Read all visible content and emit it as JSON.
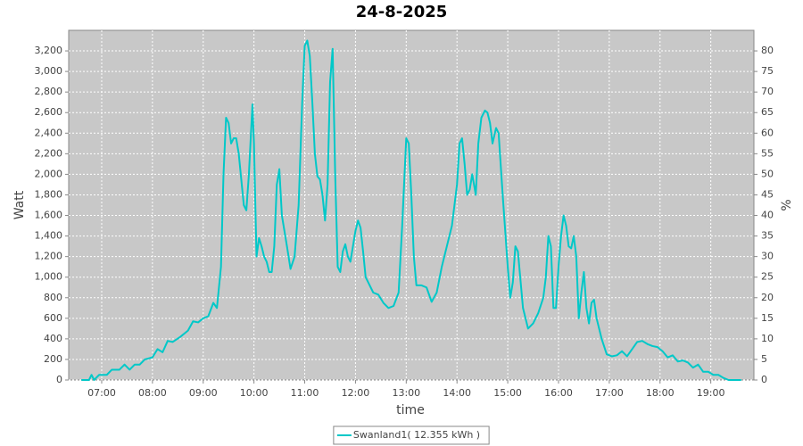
{
  "chart_data": {
    "type": "line",
    "title": "24-8-2025",
    "x_label": "time",
    "y_label": "Watt",
    "y2_label": "%",
    "x": [
      6.6,
      6.75,
      6.8,
      6.85,
      6.95,
      7.1,
      7.2,
      7.35,
      7.45,
      7.55,
      7.65,
      7.75,
      7.85,
      8.0,
      8.1,
      8.2,
      8.3,
      8.4,
      8.55,
      8.7,
      8.8,
      8.9,
      9.0,
      9.1,
      9.2,
      9.27,
      9.35,
      9.4,
      9.45,
      9.5,
      9.55,
      9.6,
      9.65,
      9.7,
      9.8,
      9.85,
      9.9,
      9.97,
      10.0,
      10.05,
      10.1,
      10.15,
      10.2,
      10.25,
      10.3,
      10.35,
      10.4,
      10.45,
      10.5,
      10.55,
      10.6,
      10.65,
      10.72,
      10.8,
      10.88,
      10.95,
      11.0,
      11.05,
      11.1,
      11.15,
      11.2,
      11.25,
      11.3,
      11.35,
      11.4,
      11.45,
      11.5,
      11.55,
      11.6,
      11.65,
      11.7,
      11.75,
      11.8,
      11.85,
      11.9,
      11.95,
      12.0,
      12.05,
      12.1,
      12.15,
      12.2,
      12.25,
      12.35,
      12.45,
      12.55,
      12.65,
      12.75,
      12.85,
      12.92,
      13.0,
      13.05,
      13.1,
      13.15,
      13.2,
      13.3,
      13.4,
      13.5,
      13.6,
      13.7,
      13.8,
      13.9,
      14.0,
      14.05,
      14.1,
      14.15,
      14.2,
      14.25,
      14.3,
      14.37,
      14.42,
      14.48,
      14.55,
      14.6,
      14.65,
      14.7,
      14.77,
      14.82,
      14.9,
      15.0,
      15.05,
      15.1,
      15.15,
      15.2,
      15.3,
      15.4,
      15.5,
      15.6,
      15.7,
      15.75,
      15.8,
      15.85,
      15.9,
      15.95,
      16.0,
      16.05,
      16.1,
      16.15,
      16.2,
      16.25,
      16.3,
      16.35,
      16.4,
      16.45,
      16.5,
      16.55,
      16.6,
      16.65,
      16.7,
      16.75,
      16.85,
      16.95,
      17.05,
      17.15,
      17.25,
      17.35,
      17.45,
      17.55,
      17.65,
      17.75,
      17.85,
      17.95,
      18.05,
      18.15,
      18.25,
      18.35,
      18.45,
      18.55,
      18.65,
      18.75,
      18.85,
      18.95,
      19.05,
      19.15,
      19.25,
      19.35,
      19.5,
      19.6
    ],
    "series": [
      {
        "name": "Swanland1( 12.355 kWh )",
        "color": "#00c8c8",
        "values": [
          0,
          0,
          50,
          0,
          50,
          50,
          100,
          100,
          150,
          100,
          150,
          150,
          200,
          220,
          300,
          270,
          380,
          370,
          420,
          480,
          570,
          560,
          600,
          620,
          750,
          700,
          1100,
          2000,
          2550,
          2500,
          2300,
          2350,
          2350,
          2200,
          1700,
          1650,
          2000,
          2680,
          2300,
          1200,
          1380,
          1300,
          1200,
          1150,
          1050,
          1050,
          1300,
          1900,
          2050,
          1600,
          1450,
          1300,
          1080,
          1200,
          1700,
          2700,
          3250,
          3300,
          3150,
          2700,
          2200,
          1980,
          1950,
          1800,
          1550,
          1900,
          2900,
          3220,
          2000,
          1100,
          1050,
          1250,
          1320,
          1200,
          1150,
          1300,
          1450,
          1550,
          1480,
          1250,
          1000,
          950,
          850,
          830,
          750,
          700,
          720,
          850,
          1500,
          2350,
          2300,
          1800,
          1200,
          920,
          920,
          900,
          760,
          850,
          1100,
          1300,
          1500,
          1900,
          2300,
          2350,
          2100,
          1800,
          1850,
          2000,
          1800,
          2300,
          2550,
          2620,
          2600,
          2500,
          2300,
          2450,
          2400,
          1800,
          1100,
          800,
          950,
          1300,
          1250,
          700,
          500,
          550,
          650,
          800,
          1000,
          1400,
          1300,
          700,
          700,
          1100,
          1400,
          1600,
          1500,
          1300,
          1280,
          1400,
          1200,
          600,
          850,
          1050,
          700,
          550,
          750,
          780,
          600,
          400,
          250,
          230,
          240,
          280,
          230,
          300,
          370,
          380,
          350,
          330,
          320,
          280,
          220,
          240,
          180,
          190,
          170,
          120,
          150,
          80,
          80,
          50,
          50,
          20,
          0,
          0,
          0
        ]
      }
    ],
    "xlim": [
      6.35,
      19.85
    ],
    "xticks": [
      {
        "value": 7,
        "label": "07:00"
      },
      {
        "value": 8,
        "label": "08:00"
      },
      {
        "value": 9,
        "label": "09:00"
      },
      {
        "value": 10,
        "label": "10:00"
      },
      {
        "value": 11,
        "label": "11:00"
      },
      {
        "value": 12,
        "label": "12:00"
      },
      {
        "value": 13,
        "label": "13:00"
      },
      {
        "value": 14,
        "label": "14:00"
      },
      {
        "value": 15,
        "label": "15:00"
      },
      {
        "value": 16,
        "label": "16:00"
      },
      {
        "value": 17,
        "label": "17:00"
      },
      {
        "value": 18,
        "label": "18:00"
      },
      {
        "value": 19,
        "label": "19:00"
      }
    ],
    "ylim": [
      0,
      3400
    ],
    "yticks": [
      0,
      200,
      400,
      600,
      800,
      {
        "value": 1000,
        "label": "1,000"
      },
      {
        "value": 1200,
        "label": "1,200"
      },
      {
        "value": 1400,
        "label": "1,400"
      },
      {
        "value": 1600,
        "label": "1,600"
      },
      {
        "value": 1800,
        "label": "1,800"
      },
      {
        "value": 2000,
        "label": "2,000"
      },
      {
        "value": 2200,
        "label": "2,200"
      },
      {
        "value": 2400,
        "label": "2,400"
      },
      {
        "value": 2600,
        "label": "2,600"
      },
      {
        "value": 2800,
        "label": "2,800"
      },
      {
        "value": 3000,
        "label": "3,000"
      },
      {
        "value": 3200,
        "label": "3,200"
      }
    ],
    "y2lim": [
      0,
      85
    ],
    "y2ticks": [
      0,
      5,
      10,
      15,
      20,
      25,
      30,
      35,
      40,
      45,
      50,
      55,
      60,
      65,
      70,
      75,
      80
    ],
    "grid": true,
    "legend": "bottom",
    "plot_background": "#c8c8c8"
  }
}
